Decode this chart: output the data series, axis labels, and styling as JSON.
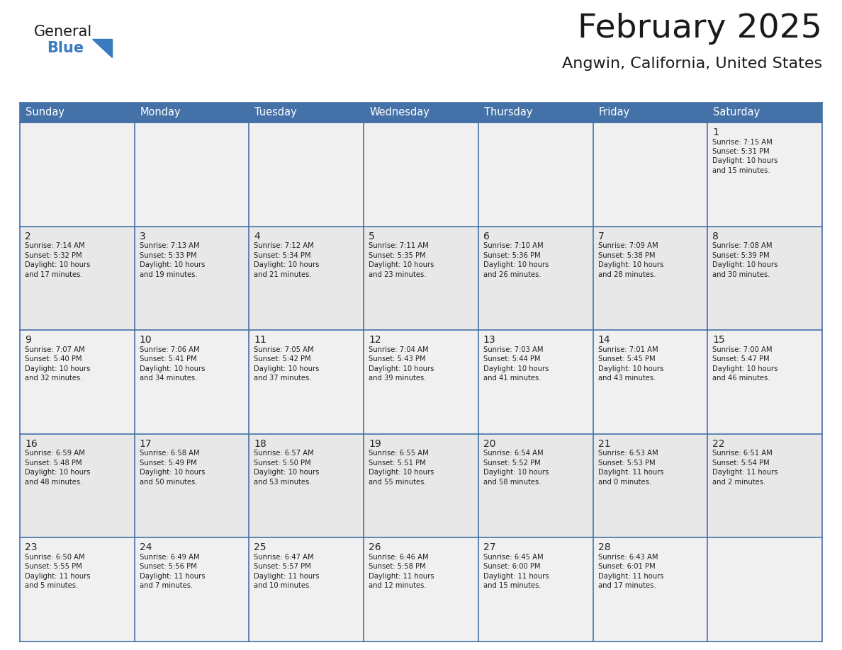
{
  "title": "February 2025",
  "subtitle": "Angwin, California, United States",
  "header_bg": "#4472a8",
  "header_text": "#ffffff",
  "row_bg_even": "#f0f0f0",
  "row_bg_odd": "#e8e8e8",
  "border_color": "#4472a8",
  "text_color": "#222222",
  "day_number_color": "#222222",
  "day_headers": [
    "Sunday",
    "Monday",
    "Tuesday",
    "Wednesday",
    "Thursday",
    "Friday",
    "Saturday"
  ],
  "days": [
    {
      "day": 1,
      "col": 6,
      "row": 0,
      "sunrise": "7:15 AM",
      "sunset": "5:31 PM",
      "daylight_h": "10",
      "daylight_m": "15"
    },
    {
      "day": 2,
      "col": 0,
      "row": 1,
      "sunrise": "7:14 AM",
      "sunset": "5:32 PM",
      "daylight_h": "10",
      "daylight_m": "17"
    },
    {
      "day": 3,
      "col": 1,
      "row": 1,
      "sunrise": "7:13 AM",
      "sunset": "5:33 PM",
      "daylight_h": "10",
      "daylight_m": "19"
    },
    {
      "day": 4,
      "col": 2,
      "row": 1,
      "sunrise": "7:12 AM",
      "sunset": "5:34 PM",
      "daylight_h": "10",
      "daylight_m": "21"
    },
    {
      "day": 5,
      "col": 3,
      "row": 1,
      "sunrise": "7:11 AM",
      "sunset": "5:35 PM",
      "daylight_h": "10",
      "daylight_m": "23"
    },
    {
      "day": 6,
      "col": 4,
      "row": 1,
      "sunrise": "7:10 AM",
      "sunset": "5:36 PM",
      "daylight_h": "10",
      "daylight_m": "26"
    },
    {
      "day": 7,
      "col": 5,
      "row": 1,
      "sunrise": "7:09 AM",
      "sunset": "5:38 PM",
      "daylight_h": "10",
      "daylight_m": "28"
    },
    {
      "day": 8,
      "col": 6,
      "row": 1,
      "sunrise": "7:08 AM",
      "sunset": "5:39 PM",
      "daylight_h": "10",
      "daylight_m": "30"
    },
    {
      "day": 9,
      "col": 0,
      "row": 2,
      "sunrise": "7:07 AM",
      "sunset": "5:40 PM",
      "daylight_h": "10",
      "daylight_m": "32"
    },
    {
      "day": 10,
      "col": 1,
      "row": 2,
      "sunrise": "7:06 AM",
      "sunset": "5:41 PM",
      "daylight_h": "10",
      "daylight_m": "34"
    },
    {
      "day": 11,
      "col": 2,
      "row": 2,
      "sunrise": "7:05 AM",
      "sunset": "5:42 PM",
      "daylight_h": "10",
      "daylight_m": "37"
    },
    {
      "day": 12,
      "col": 3,
      "row": 2,
      "sunrise": "7:04 AM",
      "sunset": "5:43 PM",
      "daylight_h": "10",
      "daylight_m": "39"
    },
    {
      "day": 13,
      "col": 4,
      "row": 2,
      "sunrise": "7:03 AM",
      "sunset": "5:44 PM",
      "daylight_h": "10",
      "daylight_m": "41"
    },
    {
      "day": 14,
      "col": 5,
      "row": 2,
      "sunrise": "7:01 AM",
      "sunset": "5:45 PM",
      "daylight_h": "10",
      "daylight_m": "43"
    },
    {
      "day": 15,
      "col": 6,
      "row": 2,
      "sunrise": "7:00 AM",
      "sunset": "5:47 PM",
      "daylight_h": "10",
      "daylight_m": "46"
    },
    {
      "day": 16,
      "col": 0,
      "row": 3,
      "sunrise": "6:59 AM",
      "sunset": "5:48 PM",
      "daylight_h": "10",
      "daylight_m": "48"
    },
    {
      "day": 17,
      "col": 1,
      "row": 3,
      "sunrise": "6:58 AM",
      "sunset": "5:49 PM",
      "daylight_h": "10",
      "daylight_m": "50"
    },
    {
      "day": 18,
      "col": 2,
      "row": 3,
      "sunrise": "6:57 AM",
      "sunset": "5:50 PM",
      "daylight_h": "10",
      "daylight_m": "53"
    },
    {
      "day": 19,
      "col": 3,
      "row": 3,
      "sunrise": "6:55 AM",
      "sunset": "5:51 PM",
      "daylight_h": "10",
      "daylight_m": "55"
    },
    {
      "day": 20,
      "col": 4,
      "row": 3,
      "sunrise": "6:54 AM",
      "sunset": "5:52 PM",
      "daylight_h": "10",
      "daylight_m": "58"
    },
    {
      "day": 21,
      "col": 5,
      "row": 3,
      "sunrise": "6:53 AM",
      "sunset": "5:53 PM",
      "daylight_h": "11",
      "daylight_m": "0"
    },
    {
      "day": 22,
      "col": 6,
      "row": 3,
      "sunrise": "6:51 AM",
      "sunset": "5:54 PM",
      "daylight_h": "11",
      "daylight_m": "2"
    },
    {
      "day": 23,
      "col": 0,
      "row": 4,
      "sunrise": "6:50 AM",
      "sunset": "5:55 PM",
      "daylight_h": "11",
      "daylight_m": "5"
    },
    {
      "day": 24,
      "col": 1,
      "row": 4,
      "sunrise": "6:49 AM",
      "sunset": "5:56 PM",
      "daylight_h": "11",
      "daylight_m": "7"
    },
    {
      "day": 25,
      "col": 2,
      "row": 4,
      "sunrise": "6:47 AM",
      "sunset": "5:57 PM",
      "daylight_h": "11",
      "daylight_m": "10"
    },
    {
      "day": 26,
      "col": 3,
      "row": 4,
      "sunrise": "6:46 AM",
      "sunset": "5:58 PM",
      "daylight_h": "11",
      "daylight_m": "12"
    },
    {
      "day": 27,
      "col": 4,
      "row": 4,
      "sunrise": "6:45 AM",
      "sunset": "6:00 PM",
      "daylight_h": "11",
      "daylight_m": "15"
    },
    {
      "day": 28,
      "col": 5,
      "row": 4,
      "sunrise": "6:43 AM",
      "sunset": "6:01 PM",
      "daylight_h": "11",
      "daylight_m": "17"
    }
  ],
  "logo_color_general": "#1a1a1a",
  "logo_color_blue": "#3a7abf",
  "logo_triangle_color": "#3a7abf",
  "title_color": "#1a1a1a",
  "subtitle_color": "#1a1a1a",
  "title_fontsize": 34,
  "subtitle_fontsize": 16,
  "day_number_fontsize": 10,
  "cell_text_fontsize": 7.2,
  "header_fontsize": 10.5,
  "num_rows": 5,
  "num_cols": 7
}
